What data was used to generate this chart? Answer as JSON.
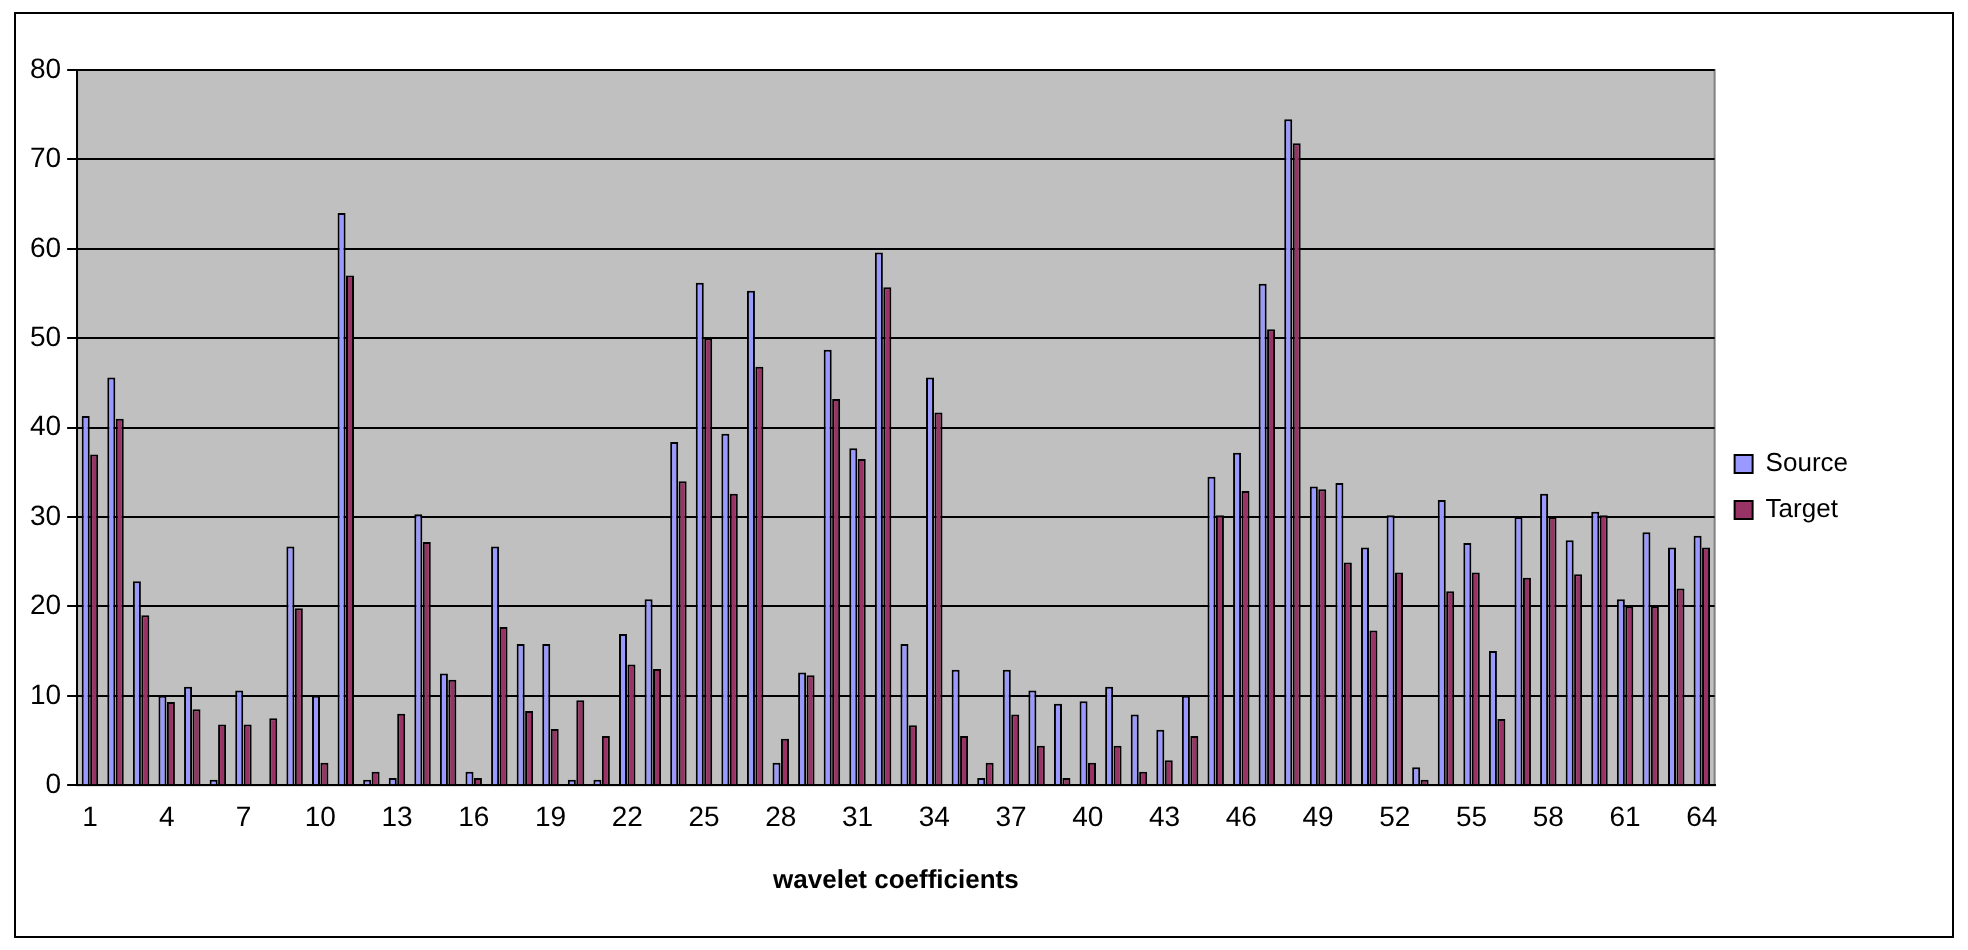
{
  "chart_data": {
    "type": "bar",
    "xlabel": "wavelet coefficients",
    "categories": [
      "1",
      null,
      null,
      "4",
      null,
      null,
      "7",
      null,
      null,
      "10",
      null,
      null,
      "13",
      null,
      null,
      "16",
      null,
      null,
      "19",
      null,
      null,
      "22",
      null,
      null,
      "25",
      null,
      null,
      "28",
      null,
      null,
      "31",
      null,
      null,
      "34",
      null,
      null,
      "37",
      null,
      null,
      "40",
      null,
      null,
      "43",
      null,
      null,
      "46",
      null,
      null,
      "49",
      null,
      null,
      "52",
      null,
      null,
      "55",
      null,
      null,
      "58",
      null,
      null,
      "61",
      null,
      null,
      "64"
    ],
    "series": [
      {
        "name": "Source",
        "color": "#9999ff",
        "values": [
          41.3,
          45.6,
          22.8,
          10,
          11,
          0.6,
          10.6,
          0,
          26.7,
          10,
          64,
          0.6,
          0.8,
          30.3,
          12.5,
          1.5,
          26.7,
          15.8,
          15.8,
          0.6,
          0.6,
          16.9,
          20.8,
          38.4,
          56.2,
          39.3,
          55.3,
          2.5,
          12.6,
          48.7,
          37.7,
          59.6,
          15.8,
          45.6,
          12.9,
          0.8,
          12.9,
          10.6,
          9.1,
          9.4,
          11,
          7.9,
          6.2,
          10,
          34.5,
          37.2,
          56.1,
          74.5,
          33.4,
          33.8,
          26.6,
          30.2,
          2,
          31.9,
          27.1,
          15,
          30,
          32.6,
          27.4,
          30.6,
          20.8,
          28.3,
          26.6,
          27.9
        ]
      },
      {
        "name": "Target",
        "color": "#993366",
        "values": [
          37,
          41,
          19,
          9.3,
          8.5,
          6.8,
          6.8,
          7.5,
          19.8,
          2.5,
          57,
          1.5,
          8,
          27.2,
          11.8,
          0.8,
          17.7,
          8.3,
          6.3,
          9.5,
          5.5,
          13.5,
          13,
          34,
          50,
          32.6,
          46.8,
          5.2,
          12.3,
          43.2,
          36.5,
          55.7,
          6.7,
          41.7,
          5.5,
          2.5,
          7.9,
          4.4,
          0.8,
          2.5,
          4.4,
          1.5,
          2.8,
          5.5,
          30.2,
          32.9,
          51,
          71.8,
          33.1,
          24.9,
          17.3,
          23.8,
          0.6,
          21.7,
          23.8,
          7.4,
          23.2,
          30,
          23.6,
          30.2,
          20,
          20,
          22,
          26.6
        ]
      }
    ],
    "ylim": [
      0,
      80
    ],
    "yticks": [
      0,
      10,
      20,
      30,
      40,
      50,
      60,
      70,
      80
    ],
    "grid": "y",
    "legend": "right"
  }
}
